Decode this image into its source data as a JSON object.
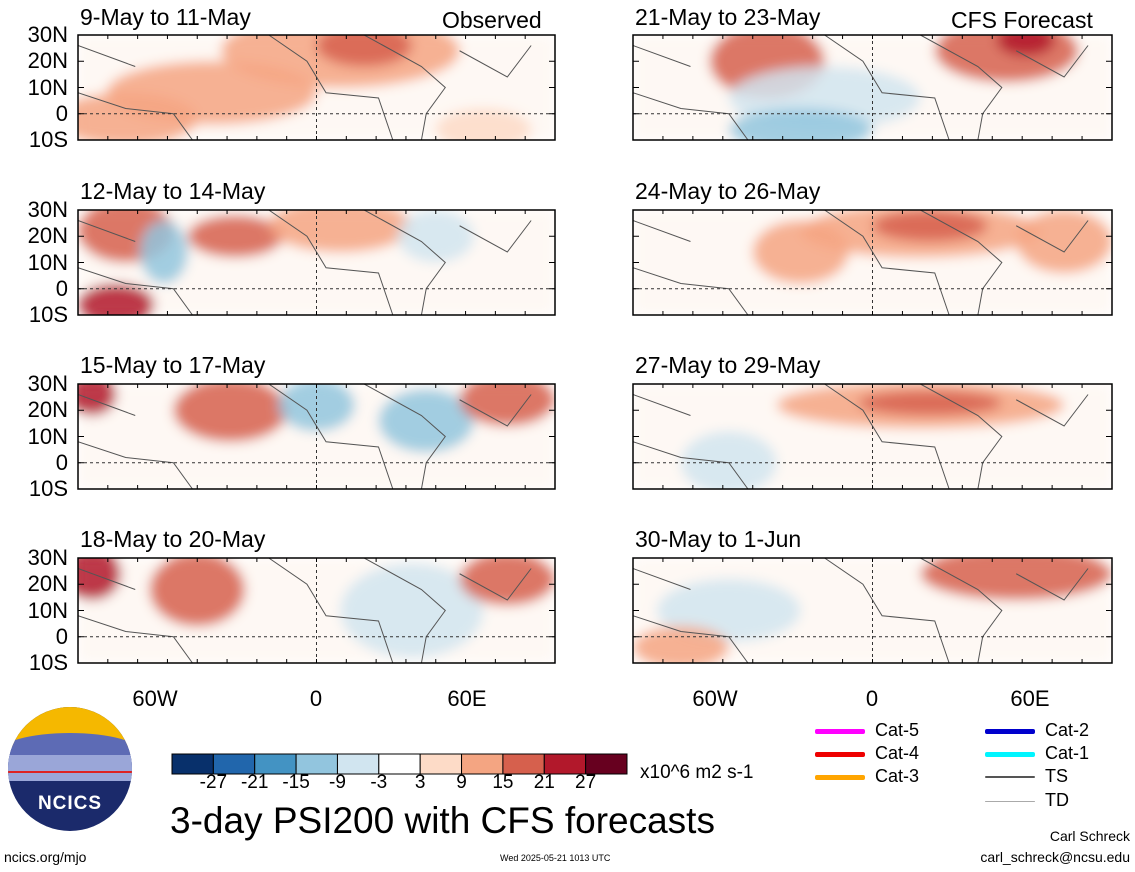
{
  "header": {
    "observed_label": "Observed",
    "forecast_label": "CFS Forecast"
  },
  "panels": [
    {
      "column": "observed",
      "date_range": "9-May to 11-May"
    },
    {
      "column": "observed",
      "date_range": "12-May to 14-May"
    },
    {
      "column": "observed",
      "date_range": "15-May to 17-May"
    },
    {
      "column": "observed",
      "date_range": "18-May to 20-May"
    },
    {
      "column": "forecast",
      "date_range": "21-May to 23-May"
    },
    {
      "column": "forecast",
      "date_range": "24-May to 26-May"
    },
    {
      "column": "forecast",
      "date_range": "27-May to 29-May"
    },
    {
      "column": "forecast",
      "date_range": "30-May to 1-Jun"
    }
  ],
  "axes": {
    "lat_labels": [
      "30N",
      "20N",
      "10N",
      "0",
      "10S"
    ],
    "lon_labels": [
      "60W",
      "0",
      "60E"
    ]
  },
  "colorbar": {
    "colors": [
      "#08306b",
      "#2166ac",
      "#4393c3",
      "#92c5de",
      "#d1e5f0",
      "#ffffff",
      "#fddbc7",
      "#f4a582",
      "#d6604d",
      "#b2182b",
      "#67001f"
    ],
    "tick_labels": [
      "-27",
      "-21",
      "-15",
      "-9",
      "-3",
      "3",
      "9",
      "15",
      "21",
      "27"
    ],
    "units": "x10^6 m2 s-1"
  },
  "legend": {
    "items": [
      {
        "label": "Cat-5",
        "color": "#ff00ff"
      },
      {
        "label": "Cat-4",
        "color": "#ee0000"
      },
      {
        "label": "Cat-3",
        "color": "#ffa500"
      },
      {
        "label": "Cat-2",
        "color": "#0000cd"
      },
      {
        "label": "Cat-1",
        "color": "#00f5ff"
      },
      {
        "label": "TS",
        "color": "#555555"
      },
      {
        "label": "TD",
        "color": "#aaaaaa"
      }
    ]
  },
  "logo": {
    "text": "NCICS"
  },
  "main_title": "3-day PSI200 with CFS forecasts",
  "footer": {
    "url": "ncics.org/mjo",
    "timestamp": "Wed 2025-05-21 1013 UTC",
    "author": "Carl Schreck",
    "email": "carl_schreck@ncsu.edu"
  }
}
